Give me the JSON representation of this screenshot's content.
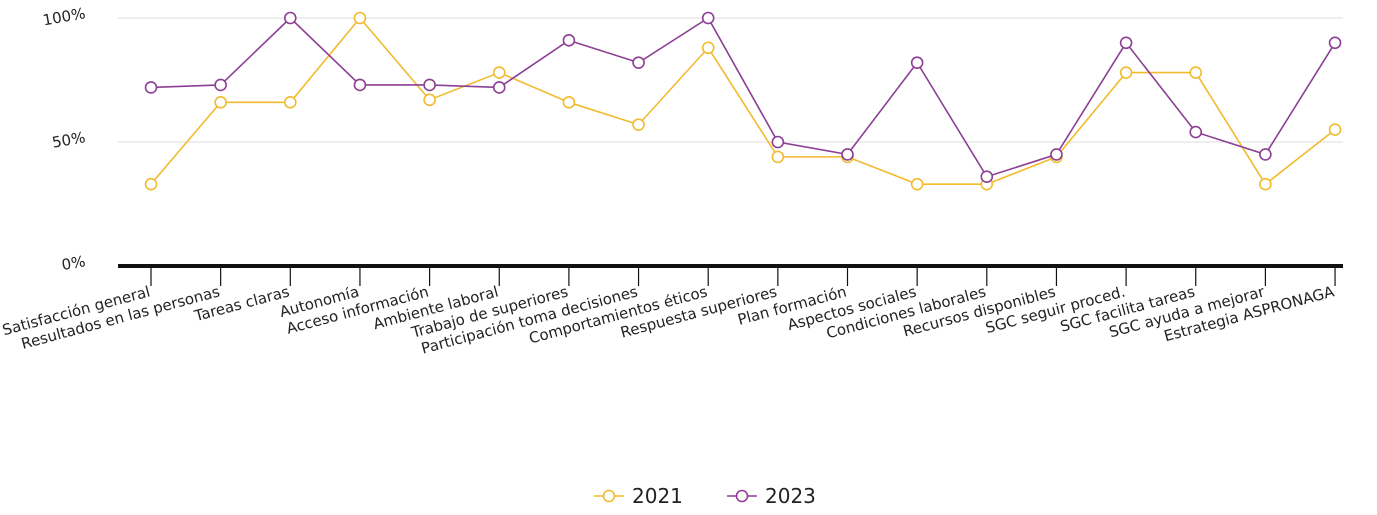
{
  "chart_data": {
    "type": "line",
    "title": "",
    "xlabel": "",
    "ylabel": "",
    "ylim": [
      0,
      100
    ],
    "yticks": [
      {
        "value": 0,
        "label": "0%"
      },
      {
        "value": 50,
        "label": "50%"
      },
      {
        "value": 100,
        "label": "100%"
      }
    ],
    "grid": true,
    "legend_position": "bottom-center",
    "categories": [
      "Satisfacción general",
      "Resultados en las personas",
      "Tareas claras",
      "Autonomía",
      "Acceso información",
      "Ambiente laboral",
      "Trabajo de superiores",
      "Participación toma decisiones",
      "Comportamientos éticos",
      "Respuesta superiores",
      "Plan formación",
      "Aspectos sociales",
      "Condiciones laborales",
      "Recursos disponibles",
      "SGC seguir proced.",
      "SGC facilita tareas",
      "SGC ayuda a mejorar",
      "Estrategia ASPRONAGA"
    ],
    "series": [
      {
        "name": "2021",
        "color": "#f2bb2e",
        "values": [
          33,
          66,
          66,
          100,
          67,
          78,
          66,
          57,
          88,
          44,
          44,
          33,
          33,
          44,
          78,
          78,
          33,
          55
        ]
      },
      {
        "name": "2023",
        "color": "#8c3f94",
        "values": [
          72,
          73,
          100,
          73,
          73,
          72,
          91,
          82,
          100,
          50,
          45,
          82,
          36,
          45,
          90,
          54,
          45,
          90
        ]
      }
    ]
  }
}
